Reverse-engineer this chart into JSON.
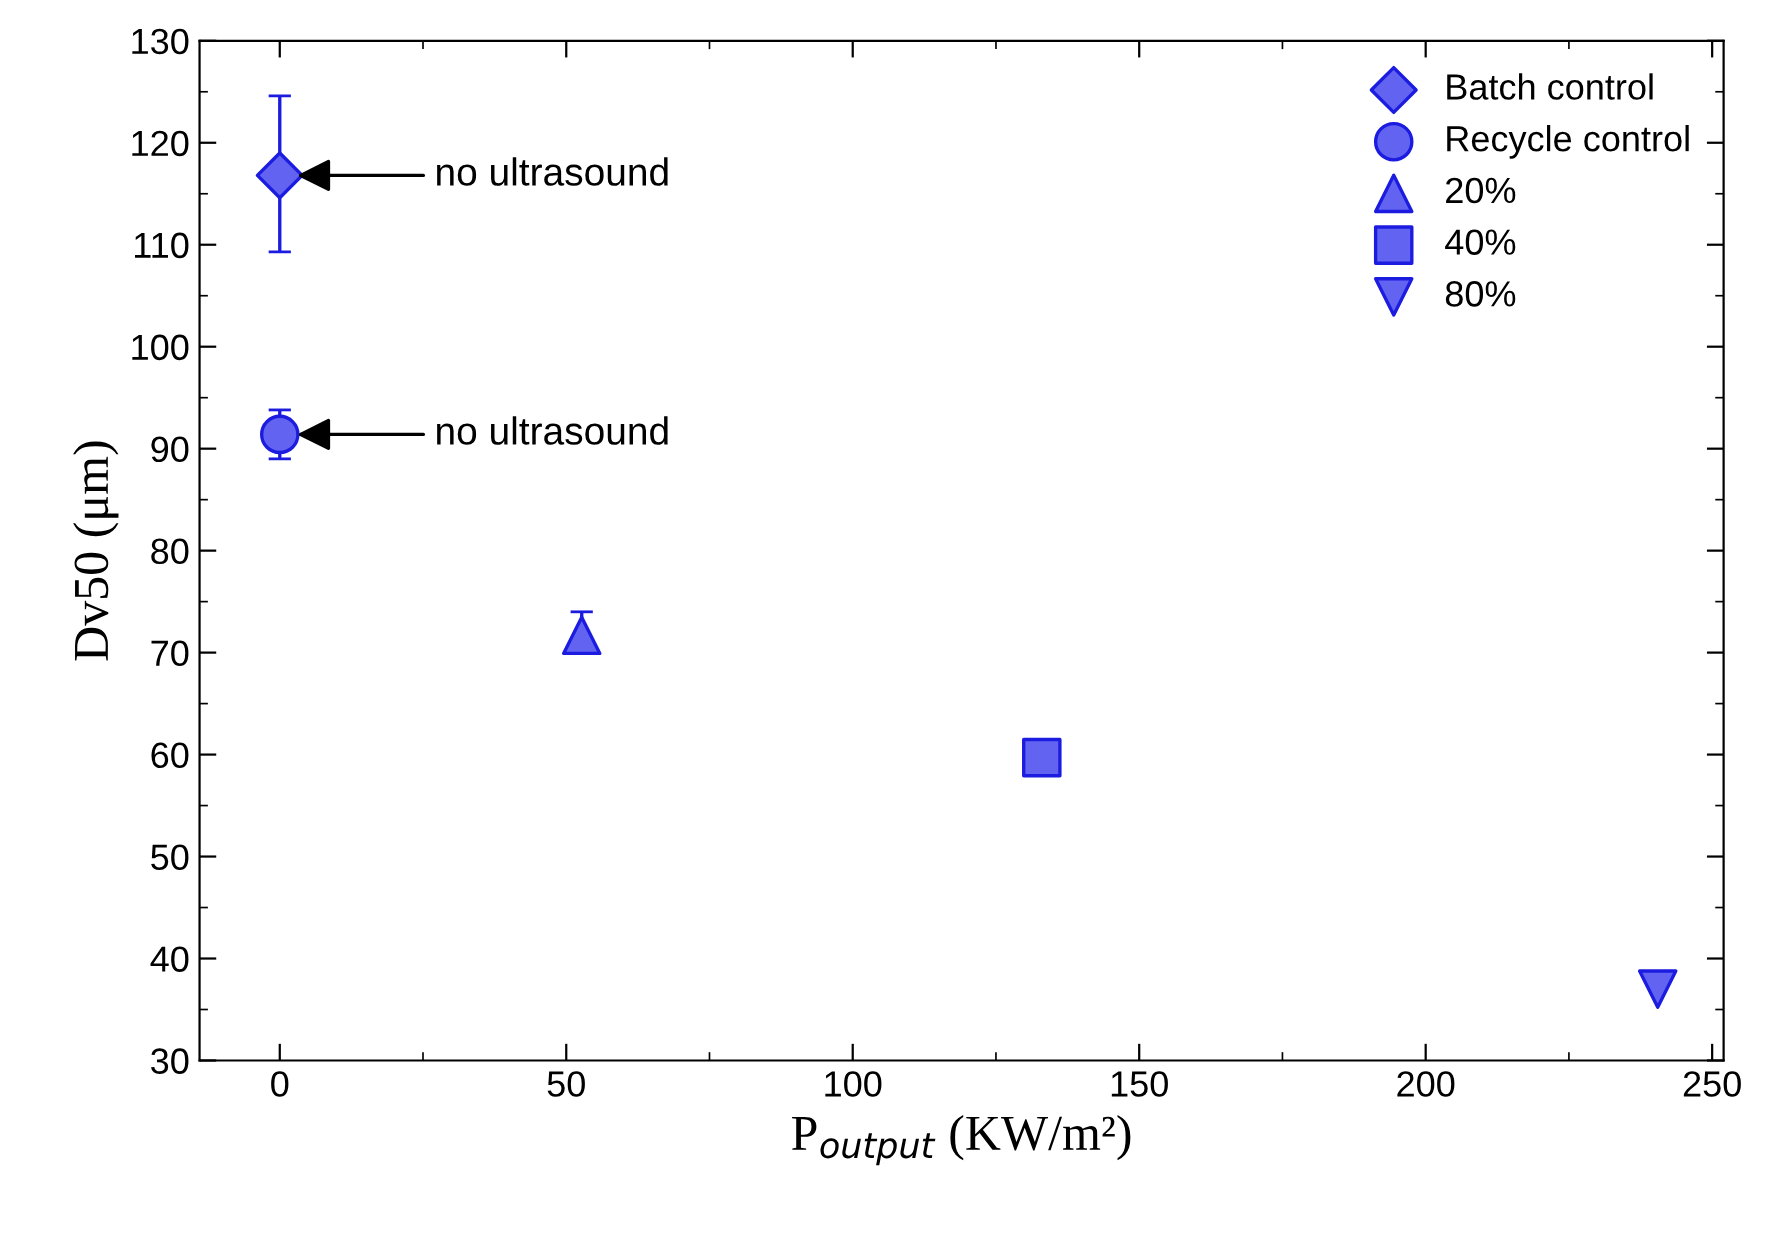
{
  "chart_data": {
    "type": "scatter",
    "xlabel": "P$_{output}$ (KW/m²)",
    "ylabel": "Dv50 (μm)",
    "xlim": [
      -14,
      252
    ],
    "xticks": [
      0,
      50,
      100,
      150,
      200,
      250
    ],
    "ylim": [
      30,
      130
    ],
    "yticks": [
      30,
      40,
      50,
      60,
      70,
      80,
      90,
      100,
      110,
      120,
      130
    ],
    "grid": false,
    "legend": "top right",
    "series": [
      {
        "name": "Batch control",
        "marker": "diamond",
        "color": "#6363f2",
        "x": [
          0
        ],
        "values": [
          116.8
        ],
        "errors": [
          [
            109.3,
            124.6
          ]
        ]
      },
      {
        "name": "Recycle control",
        "marker": "circle",
        "color": "#6363f2",
        "x": [
          0
        ],
        "values": [
          91.4
        ],
        "errors": [
          [
            89.0,
            93.8
          ]
        ]
      },
      {
        "name": "20%",
        "marker": "triangle",
        "color": "#6363f2",
        "x": [
          52.7
        ],
        "values": [
          71.7
        ],
        "errors": [
          [
            70.0,
            74.0
          ]
        ]
      },
      {
        "name": "40%",
        "marker": "square",
        "color": "#6363f2",
        "x": [
          133
        ],
        "values": [
          59.7
        ],
        "errors": [
          null
        ]
      },
      {
        "name": "80%",
        "marker": "triangle_down",
        "color": "#6363f2",
        "x": [
          240.5
        ],
        "values": [
          37.0
        ],
        "errors": [
          null
        ]
      }
    ],
    "annotations": [
      {
        "text": "no ultrasound",
        "x": 3,
        "y": 116.8
      },
      {
        "text": "no ultrasound",
        "x": 3,
        "y": 91.4
      }
    ]
  }
}
